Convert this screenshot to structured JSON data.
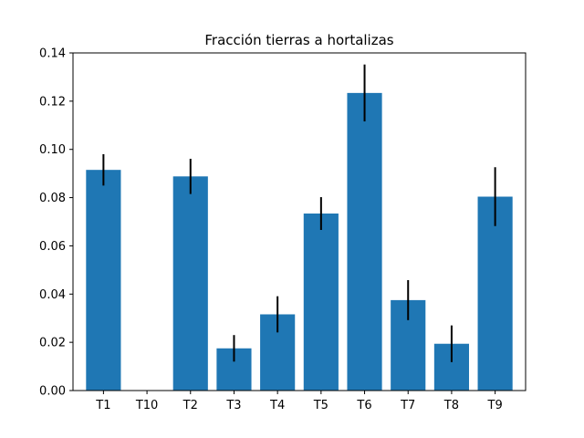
{
  "chart_data": {
    "type": "bar",
    "title": "Fracción tierras a hortalizas",
    "xlabel": "",
    "ylabel": "",
    "categories": [
      "T1",
      "T10",
      "T2",
      "T3",
      "T4",
      "T5",
      "T6",
      "T7",
      "T8",
      "T9"
    ],
    "values": [
      0.0915,
      0.0,
      0.0888,
      0.0175,
      0.0316,
      0.0734,
      0.1234,
      0.0375,
      0.0194,
      0.0804
    ],
    "error": [
      0.0065,
      0.0,
      0.0073,
      0.0055,
      0.0075,
      0.0068,
      0.0118,
      0.0083,
      0.0076,
      0.0122
    ],
    "ylim": [
      0,
      0.14
    ],
    "yticks": [
      "0.00",
      "0.02",
      "0.04",
      "0.06",
      "0.08",
      "0.10",
      "0.12",
      "0.14"
    ],
    "ytick_values": [
      0,
      0.02,
      0.04,
      0.06,
      0.08,
      0.1,
      0.12,
      0.14
    ],
    "grid": false,
    "bar_color": "#1f77b4",
    "error_color": "#000000"
  }
}
